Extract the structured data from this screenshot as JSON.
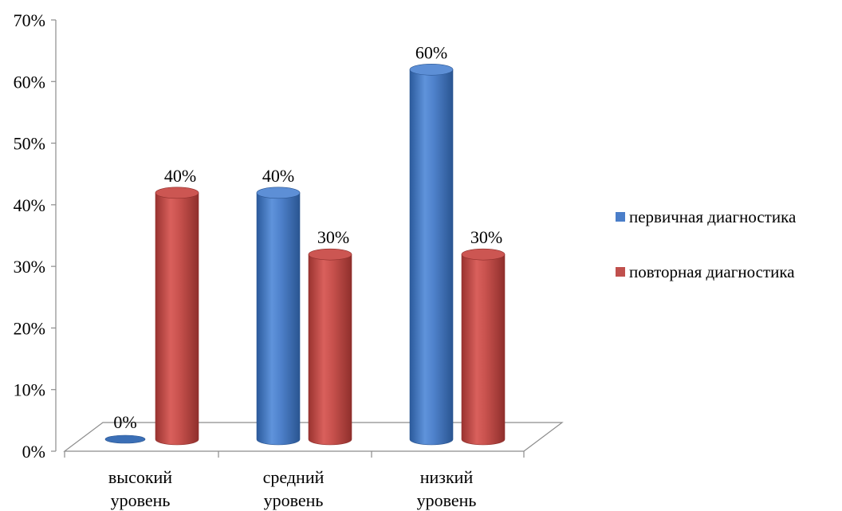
{
  "chart_data": {
    "type": "bar",
    "title": "",
    "xlabel": "",
    "ylabel": "",
    "categories": [
      [
        "высокий",
        "уровень"
      ],
      [
        "средний",
        "уровень"
      ],
      [
        "низкий",
        "уровень"
      ]
    ],
    "series": [
      {
        "name": "первичная диагностика",
        "values": [
          0,
          40,
          60
        ],
        "labels": [
          "0%",
          "40%",
          "60%"
        ],
        "color": "#4a7ec9"
      },
      {
        "name": "повторная диагностика",
        "values": [
          40,
          30,
          30
        ],
        "labels": [
          "40%",
          "30%",
          "30%"
        ],
        "color": "#c0504d"
      }
    ],
    "ylim": [
      0,
      70
    ],
    "yticks": [
      "0%",
      "10%",
      "20%",
      "30%",
      "40%",
      "50%",
      "60%",
      "70%"
    ],
    "grid": false,
    "legend_position": "right",
    "style": "3d-cylinder"
  }
}
